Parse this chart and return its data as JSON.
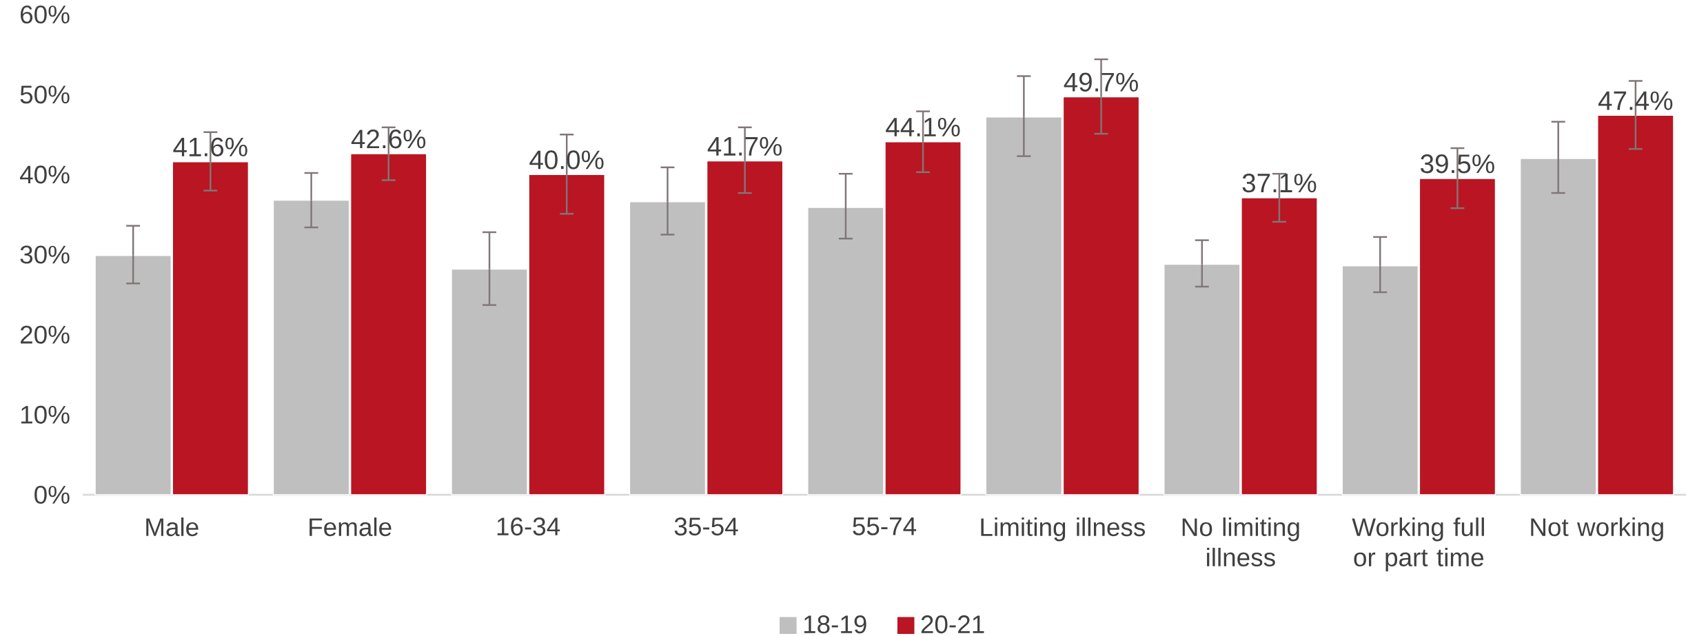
{
  "chart_data": {
    "type": "bar",
    "categories": [
      "Male",
      "Female",
      "16-34",
      "35-54",
      "55-74",
      "Limiting illness",
      "No limiting illness",
      "Working full or part time",
      "Not working"
    ],
    "series": [
      {
        "name": "18-19",
        "color": "#bfbfbf",
        "values": [
          29.9,
          36.8,
          28.2,
          36.6,
          35.9,
          47.2,
          28.8,
          28.6,
          42.0
        ],
        "errors": [
          [
            26.4,
            33.6
          ],
          [
            33.4,
            40.2
          ],
          [
            23.7,
            32.8
          ],
          [
            32.5,
            40.9
          ],
          [
            32.0,
            40.1
          ],
          [
            42.3,
            52.3
          ],
          [
            26.0,
            31.8
          ],
          [
            25.3,
            32.2
          ],
          [
            37.7,
            46.6
          ]
        ]
      },
      {
        "name": "20-21",
        "color": "#ba1522",
        "values": [
          41.6,
          42.6,
          40.0,
          41.7,
          44.1,
          49.7,
          37.1,
          39.5,
          47.4
        ],
        "errors": [
          [
            38.0,
            45.3
          ],
          [
            39.3,
            45.9
          ],
          [
            35.1,
            45.0
          ],
          [
            37.7,
            45.9
          ],
          [
            40.3,
            47.9
          ],
          [
            45.1,
            54.4
          ],
          [
            34.1,
            40.1
          ],
          [
            35.8,
            43.3
          ],
          [
            43.2,
            51.7
          ]
        ],
        "value_labels": [
          "41.6%",
          "42.6%",
          "40.0%",
          "41.7%",
          "44.1%",
          "49.7%",
          "37.1%",
          "39.5%",
          "47.4%"
        ]
      }
    ],
    "ylim": [
      0,
      60
    ],
    "yticks": [
      {
        "value": 0,
        "label": "0%"
      },
      {
        "value": 10,
        "label": "10%"
      },
      {
        "value": 20,
        "label": "20%"
      },
      {
        "value": 30,
        "label": "30%"
      },
      {
        "value": 40,
        "label": "40%"
      },
      {
        "value": 50,
        "label": "50%"
      },
      {
        "value": 60,
        "label": "60%"
      }
    ],
    "grid": false,
    "legend": "bottom"
  }
}
